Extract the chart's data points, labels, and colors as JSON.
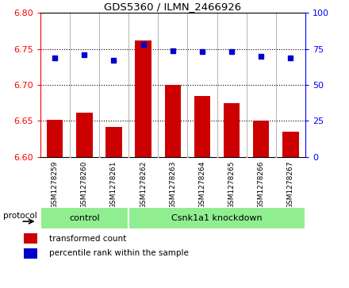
{
  "title": "GDS5360 / ILMN_2466926",
  "samples": [
    "GSM1278259",
    "GSM1278260",
    "GSM1278261",
    "GSM1278262",
    "GSM1278263",
    "GSM1278264",
    "GSM1278265",
    "GSM1278266",
    "GSM1278267"
  ],
  "transformed_counts": [
    6.652,
    6.662,
    6.642,
    6.762,
    6.7,
    6.685,
    6.675,
    6.65,
    6.635
  ],
  "percentile_ranks": [
    69,
    71,
    67,
    78,
    74,
    73,
    73,
    70,
    69
  ],
  "bar_bottom": 6.6,
  "bar_color": "#cc0000",
  "dot_color": "#0000cc",
  "ylim_left": [
    6.6,
    6.8
  ],
  "ylim_right": [
    0,
    100
  ],
  "yticks_left": [
    6.6,
    6.65,
    6.7,
    6.75,
    6.8
  ],
  "yticks_right": [
    0,
    25,
    50,
    75,
    100
  ],
  "control_count": 3,
  "knockdown_count": 6,
  "control_label": "control",
  "knockdown_label": "Csnk1a1 knockdown",
  "group_color": "#90ee90",
  "protocol_label": "protocol",
  "legend_items": [
    {
      "label": "transformed count",
      "color": "#cc0000"
    },
    {
      "label": "percentile rank within the sample",
      "color": "#0000cc"
    }
  ],
  "tick_bg_color": "#d8d8d8",
  "plot_bg": "white",
  "spine_color_left": "red",
  "spine_color_right": "blue"
}
